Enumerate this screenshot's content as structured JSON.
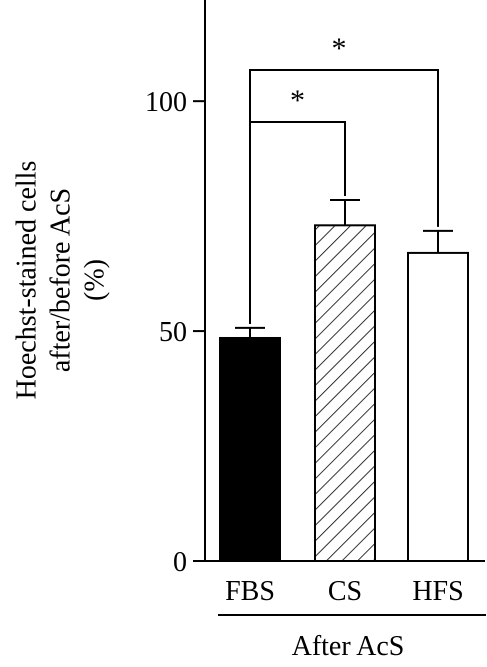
{
  "chart_data": {
    "type": "bar",
    "categories": [
      "FBS",
      "CS",
      "HFS"
    ],
    "values": [
      48.5,
      73,
      67
    ],
    "errors": [
      2.2,
      5.5,
      4.8
    ],
    "fills": [
      "solid",
      "hatched",
      "empty"
    ],
    "ylim": [
      0,
      122
    ],
    "yticks": [
      0,
      50,
      100
    ],
    "ylabel_lines": [
      "Hoechst-stained cells",
      "after/before AcS",
      "(%)"
    ],
    "xlabel": "",
    "group_label": "After AcS",
    "significance": [
      {
        "from": "FBS",
        "to": "CS",
        "label": "*"
      },
      {
        "from": "FBS",
        "to": "HFS",
        "label": "*"
      }
    ],
    "colors": {
      "bar": "#000000",
      "background": "#ffffff"
    }
  }
}
